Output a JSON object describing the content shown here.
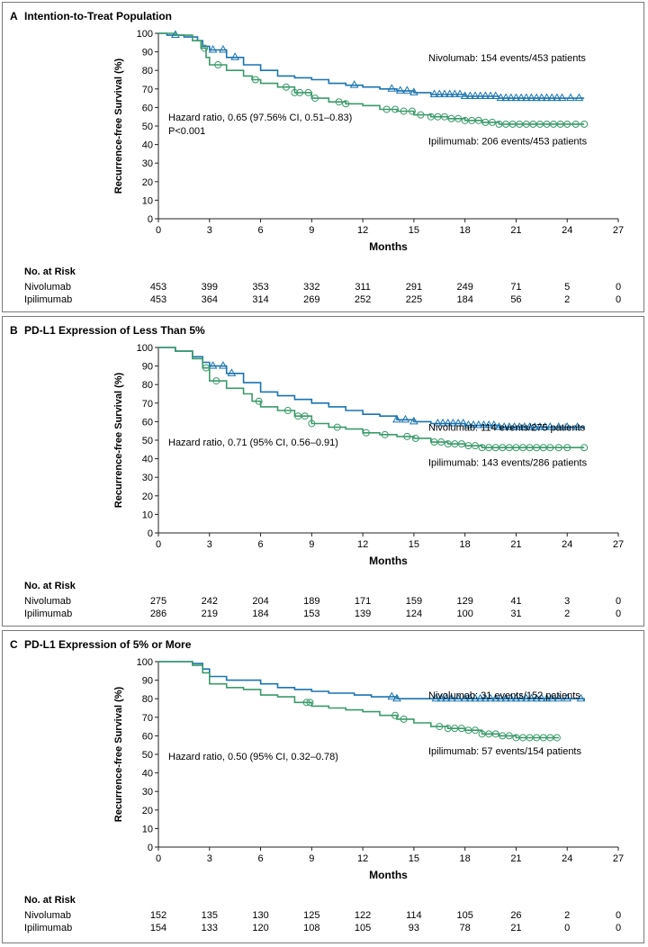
{
  "chart_data": [
    {
      "type": "line",
      "panel_letter": "A",
      "title": "Intention-to-Treat Population",
      "xlabel": "Months",
      "ylabel": "Recurrence-free Survival (%)",
      "xlim": [
        0,
        27
      ],
      "ylim": [
        0,
        100
      ],
      "xticks": [
        0,
        3,
        6,
        9,
        12,
        15,
        18,
        21,
        24,
        27
      ],
      "yticks": [
        0,
        10,
        20,
        30,
        40,
        50,
        60,
        70,
        80,
        90,
        100
      ],
      "grid": false,
      "annotation": [
        "Hazard ratio, 0.65 (97.56% CI, 0.51–0.83)",
        "P<0.001"
      ],
      "series": [
        {
          "name": "Nivolumab",
          "label": "Nivolumab: 154 events/453 patients",
          "color": "#1a74b0",
          "marker": "triangle",
          "points": [
            [
              0,
              100
            ],
            [
              0.5,
              99
            ],
            [
              1.5,
              98
            ],
            [
              2.3,
              96
            ],
            [
              2.6,
              93
            ],
            [
              3.0,
              91
            ],
            [
              4.0,
              87
            ],
            [
              5.0,
              83
            ],
            [
              6.0,
              80
            ],
            [
              7.0,
              77
            ],
            [
              8.0,
              76
            ],
            [
              9.0,
              75
            ],
            [
              10.0,
              73
            ],
            [
              11.0,
              72
            ],
            [
              12.0,
              71
            ],
            [
              13.0,
              70
            ],
            [
              14.0,
              69
            ],
            [
              15.0,
              68
            ],
            [
              16.0,
              67
            ],
            [
              18.0,
              66
            ],
            [
              20.0,
              65
            ],
            [
              25.0,
              65
            ]
          ],
          "censor_marks": [
            1.0,
            3.2,
            3.8,
            4.5,
            11.5,
            13.7,
            14.2,
            14.6,
            15.0,
            16.2,
            16.5,
            16.8,
            17.1,
            17.4,
            17.7,
            18.0,
            18.3,
            18.6,
            18.9,
            19.2,
            19.5,
            19.8,
            20.1,
            20.4,
            20.7,
            21.0,
            21.3,
            21.6,
            21.9,
            22.2,
            22.5,
            22.8,
            23.1,
            23.4,
            23.7,
            24.2,
            24.7
          ]
        },
        {
          "name": "Ipilimumab",
          "label": "Ipilimumab: 206 events/453 patients",
          "color": "#3a9a6a",
          "marker": "circle",
          "points": [
            [
              0,
              100
            ],
            [
              1.0,
              99
            ],
            [
              2.0,
              96
            ],
            [
              2.5,
              92
            ],
            [
              2.8,
              87
            ],
            [
              3.0,
              83
            ],
            [
              4.0,
              80
            ],
            [
              5.0,
              77
            ],
            [
              5.5,
              75
            ],
            [
              6.0,
              73
            ],
            [
              7.0,
              71
            ],
            [
              8.0,
              68
            ],
            [
              9.0,
              65
            ],
            [
              10.0,
              63
            ],
            [
              11.0,
              62
            ],
            [
              12.0,
              61
            ],
            [
              13.0,
              59
            ],
            [
              14.0,
              58
            ],
            [
              15.0,
              56
            ],
            [
              16.0,
              55
            ],
            [
              17.0,
              54
            ],
            [
              18.0,
              53
            ],
            [
              19.0,
              52
            ],
            [
              20.0,
              51
            ],
            [
              25.0,
              51
            ]
          ],
          "censor_marks": [
            2.7,
            3.5,
            5.7,
            7.5,
            8.0,
            8.3,
            8.8,
            9.2,
            10.6,
            11.0,
            13.4,
            13.9,
            14.4,
            14.9,
            15.4,
            16.0,
            16.4,
            16.8,
            17.2,
            17.6,
            18.0,
            18.4,
            18.8,
            19.2,
            19.6,
            20.0,
            20.4,
            20.8,
            21.2,
            21.6,
            22.0,
            22.4,
            22.8,
            23.2,
            23.6,
            24.0,
            24.5,
            25.0
          ]
        }
      ],
      "risk_table": {
        "heading": "No. at Risk",
        "rows": [
          {
            "label": "Nivolumab",
            "values": [
              "453",
              "399",
              "353",
              "332",
              "311",
              "291",
              "249",
              "71",
              "5",
              "0"
            ]
          },
          {
            "label": "Ipilimumab",
            "values": [
              "453",
              "364",
              "314",
              "269",
              "252",
              "225",
              "184",
              "56",
              "2",
              "0"
            ]
          }
        ]
      }
    },
    {
      "type": "line",
      "panel_letter": "B",
      "title": "PD-L1 Expression of Less Than 5%",
      "xlabel": "Months",
      "ylabel": "Recurrence-free Survival (%)",
      "xlim": [
        0,
        27
      ],
      "ylim": [
        0,
        100
      ],
      "xticks": [
        0,
        3,
        6,
        9,
        12,
        15,
        18,
        21,
        24,
        27
      ],
      "yticks": [
        0,
        10,
        20,
        30,
        40,
        50,
        60,
        70,
        80,
        90,
        100
      ],
      "grid": false,
      "annotation": [
        "Hazard ratio, 0.71 (95% CI, 0.56–0.91)"
      ],
      "series": [
        {
          "name": "Nivolumab",
          "label": "Nivolumab: 114 events/275 patients",
          "color": "#1a74b0",
          "marker": "triangle",
          "points": [
            [
              0,
              100
            ],
            [
              1.0,
              98
            ],
            [
              2.0,
              95
            ],
            [
              2.6,
              92
            ],
            [
              3.0,
              90
            ],
            [
              4.0,
              86
            ],
            [
              5.0,
              81
            ],
            [
              6.0,
              76
            ],
            [
              7.0,
              74
            ],
            [
              8.0,
              72
            ],
            [
              9.0,
              70
            ],
            [
              10.0,
              68
            ],
            [
              11.0,
              66
            ],
            [
              12.0,
              64
            ],
            [
              13.0,
              63
            ],
            [
              14.0,
              61
            ],
            [
              15.0,
              60
            ],
            [
              16.0,
              59
            ],
            [
              18.0,
              58
            ],
            [
              20.0,
              57
            ],
            [
              25.0,
              56
            ]
          ],
          "censor_marks": [
            3.2,
            3.8,
            4.3,
            14.0,
            14.5,
            15.0,
            16.4,
            16.7,
            17.0,
            17.3,
            17.6,
            17.9,
            18.2,
            18.5,
            18.8,
            19.1,
            19.4,
            19.7,
            20.0,
            20.3,
            20.6,
            20.9,
            21.2,
            21.5,
            21.8,
            22.1,
            22.4,
            22.7,
            23.0,
            23.5,
            24.0,
            24.6
          ]
        },
        {
          "name": "Ipilimumab",
          "label": "Ipilimumab: 143 events/286 patients",
          "color": "#3a9a6a",
          "marker": "circle",
          "points": [
            [
              0,
              100
            ],
            [
              1.0,
              98
            ],
            [
              2.0,
              94
            ],
            [
              2.6,
              89
            ],
            [
              3.0,
              82
            ],
            [
              4.0,
              78
            ],
            [
              5.0,
              75
            ],
            [
              5.5,
              71
            ],
            [
              6.0,
              68
            ],
            [
              7.0,
              66
            ],
            [
              8.0,
              63
            ],
            [
              9.0,
              59
            ],
            [
              10.0,
              57
            ],
            [
              11.0,
              56
            ],
            [
              12.0,
              54
            ],
            [
              13.0,
              53
            ],
            [
              14.0,
              52
            ],
            [
              15.0,
              51
            ],
            [
              16.0,
              49
            ],
            [
              17.0,
              48
            ],
            [
              18.0,
              47
            ],
            [
              19.0,
              46
            ],
            [
              20.0,
              46
            ],
            [
              25.0,
              46
            ]
          ],
          "censor_marks": [
            2.8,
            3.4,
            5.9,
            7.6,
            8.2,
            8.6,
            9.0,
            10.5,
            12.2,
            13.3,
            14.6,
            15.1,
            16.2,
            16.6,
            17.0,
            17.4,
            17.8,
            18.2,
            18.6,
            19.0,
            19.4,
            19.8,
            20.2,
            20.6,
            21.0,
            21.4,
            21.8,
            22.2,
            22.6,
            23.0,
            23.5,
            24.0,
            25.0
          ]
        }
      ],
      "risk_table": {
        "heading": "No. at Risk",
        "rows": [
          {
            "label": "Nivolumab",
            "values": [
              "275",
              "242",
              "204",
              "189",
              "171",
              "159",
              "129",
              "41",
              "3",
              "0"
            ]
          },
          {
            "label": "Ipilimumab",
            "values": [
              "286",
              "219",
              "184",
              "153",
              "139",
              "124",
              "100",
              "31",
              "2",
              "0"
            ]
          }
        ]
      }
    },
    {
      "type": "line",
      "panel_letter": "C",
      "title": "PD-L1 Expression of 5% or More",
      "xlabel": "Months",
      "ylabel": "Recurrence-free Survival (%)",
      "xlim": [
        0,
        27
      ],
      "ylim": [
        0,
        100
      ],
      "xticks": [
        0,
        3,
        6,
        9,
        12,
        15,
        18,
        21,
        24,
        27
      ],
      "yticks": [
        0,
        10,
        20,
        30,
        40,
        50,
        60,
        70,
        80,
        90,
        100
      ],
      "grid": false,
      "annotation": [
        "Hazard ratio, 0.50 (95% CI, 0.32–0.78)"
      ],
      "series": [
        {
          "name": "Nivolumab",
          "label": "Nivolumab: 31 events/152 patients",
          "color": "#1a74b0",
          "marker": "triangle",
          "points": [
            [
              0,
              100
            ],
            [
              2.0,
              99
            ],
            [
              2.6,
              96
            ],
            [
              3.0,
              92
            ],
            [
              4.0,
              90
            ],
            [
              6.0,
              88
            ],
            [
              7.0,
              86
            ],
            [
              8.0,
              85
            ],
            [
              9.0,
              84
            ],
            [
              10.0,
              83
            ],
            [
              11.5,
              82
            ],
            [
              12.5,
              81
            ],
            [
              14.0,
              80
            ],
            [
              25.0,
              79
            ]
          ],
          "censor_marks": [
            13.7,
            14.0,
            16.3,
            16.6,
            16.9,
            17.2,
            17.6,
            18.0,
            18.3,
            18.6,
            18.9,
            19.2,
            19.5,
            19.8,
            20.1,
            20.4,
            20.7,
            21.0,
            21.3,
            21.6,
            21.9,
            22.2,
            22.5,
            22.8,
            23.1,
            23.5,
            24.0,
            24.8
          ]
        },
        {
          "name": "Ipilimumab",
          "label": "Ipilimumab: 57 events/154 patients",
          "color": "#3a9a6a",
          "marker": "circle",
          "points": [
            [
              0,
              100
            ],
            [
              2.0,
              98
            ],
            [
              2.6,
              94
            ],
            [
              3.0,
              88
            ],
            [
              4.0,
              86
            ],
            [
              5.0,
              85
            ],
            [
              6.0,
              82
            ],
            [
              7.0,
              81
            ],
            [
              8.0,
              78
            ],
            [
              9.0,
              76
            ],
            [
              10.0,
              75
            ],
            [
              11.0,
              74
            ],
            [
              12.0,
              73
            ],
            [
              13.0,
              71
            ],
            [
              14.0,
              69
            ],
            [
              15.0,
              67
            ],
            [
              16.0,
              65
            ],
            [
              17.0,
              64
            ],
            [
              18.0,
              63
            ],
            [
              19.0,
              61
            ],
            [
              20.0,
              60
            ],
            [
              21.0,
              59
            ],
            [
              23.5,
              59
            ]
          ],
          "censor_marks": [
            8.7,
            8.9,
            13.9,
            14.4,
            16.5,
            17.0,
            17.4,
            17.8,
            18.2,
            18.6,
            19.0,
            19.4,
            19.8,
            20.2,
            20.6,
            21.0,
            21.4,
            21.8,
            22.2,
            22.6,
            23.0,
            23.4
          ]
        }
      ],
      "risk_table": {
        "heading": "No. at Risk",
        "rows": [
          {
            "label": "Nivolumab",
            "values": [
              "152",
              "135",
              "130",
              "125",
              "122",
              "114",
              "105",
              "26",
              "2",
              "0"
            ]
          },
          {
            "label": "Ipilimumab",
            "values": [
              "154",
              "133",
              "120",
              "108",
              "105",
              "93",
              "78",
              "21",
              "0",
              "0"
            ]
          }
        ]
      }
    }
  ]
}
